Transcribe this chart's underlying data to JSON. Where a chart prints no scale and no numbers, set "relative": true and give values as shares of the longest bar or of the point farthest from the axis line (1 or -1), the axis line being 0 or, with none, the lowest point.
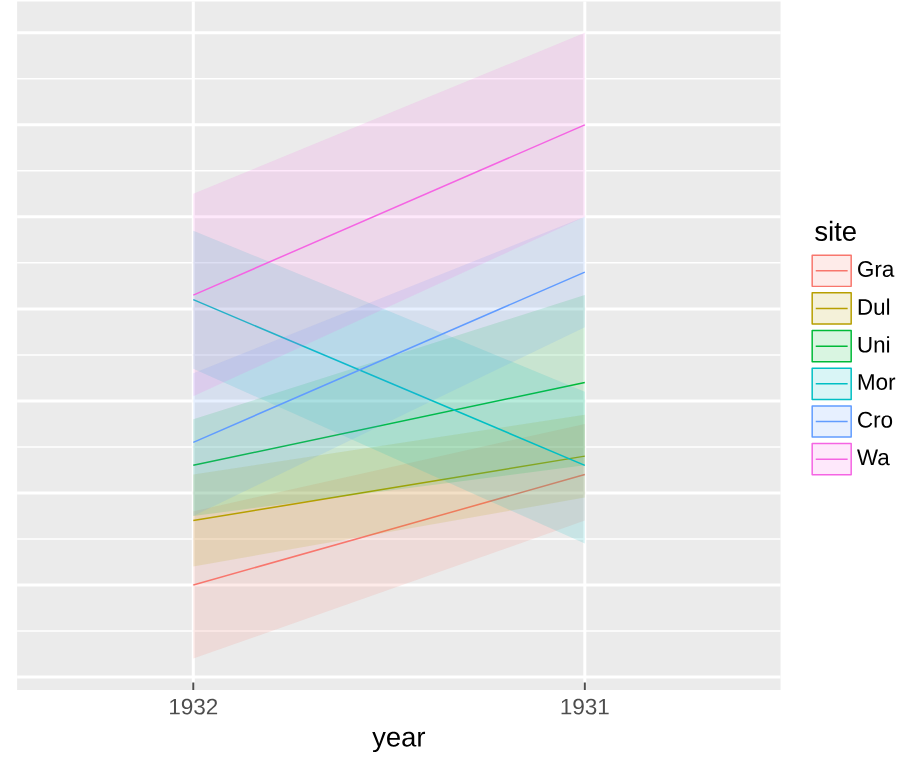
{
  "chart_data": {
    "type": "line",
    "relative": true,
    "xlabel": "year",
    "legend_title": "site",
    "legend": "right",
    "grid": true,
    "categories": [
      "1932",
      "1931"
    ],
    "series": [
      {
        "name": "Gra",
        "color": "#f8766d",
        "values": [
          0,
          0.24
        ],
        "lower": [
          -0.16,
          0.14
        ],
        "upper": [
          0.16,
          0.35
        ]
      },
      {
        "name": "Dul",
        "color": "#b79f00",
        "values": [
          0.14,
          0.28
        ],
        "lower": [
          0.04,
          0.19
        ],
        "upper": [
          0.24,
          0.37
        ]
      },
      {
        "name": "Uni",
        "color": "#00ba38",
        "values": [
          0.26,
          0.44
        ],
        "lower": [
          0.15,
          0.26
        ],
        "upper": [
          0.36,
          0.63
        ]
      },
      {
        "name": "Mor",
        "color": "#00bfc4",
        "values": [
          0.62,
          0.26
        ],
        "lower": [
          0.47,
          0.09
        ],
        "upper": [
          0.77,
          0.42
        ]
      },
      {
        "name": "Cro",
        "color": "#619cff",
        "values": [
          0.31,
          0.68
        ],
        "lower": [
          0.15,
          0.56
        ],
        "upper": [
          0.46,
          0.8
        ]
      },
      {
        "name": "Wa",
        "color": "#f564e3",
        "values": [
          0.63,
          1.0
        ],
        "lower": [
          0.41,
          0.8
        ],
        "upper": [
          0.85,
          1.2
        ]
      }
    ]
  }
}
